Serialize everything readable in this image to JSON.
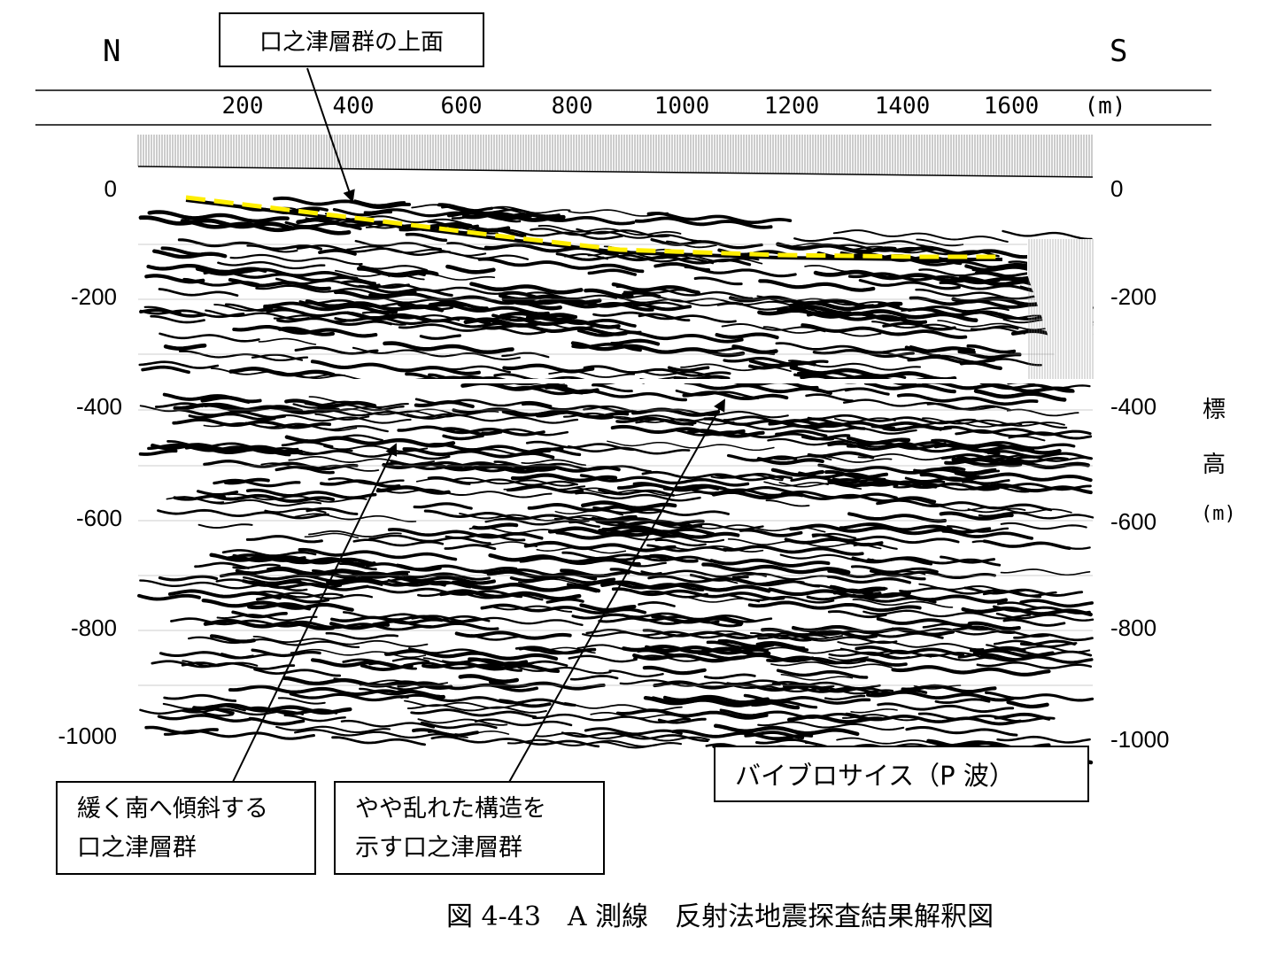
{
  "directions": {
    "north": "N",
    "south": "S"
  },
  "top_callout": "口之津層群の上面",
  "x_axis": {
    "ticks": [
      "200",
      "400",
      "600",
      "800",
      "1000",
      "1200",
      "1400",
      "1600"
    ],
    "unit": "(m)"
  },
  "y_axis_left": {
    "ticks": [
      "0",
      "-200",
      "-400",
      "-600",
      "-800",
      "-1000"
    ]
  },
  "y_axis_right": {
    "ticks": [
      "0",
      "-200",
      "-400",
      "-600",
      "-800",
      "-1000"
    ],
    "label_chars": [
      "標",
      "高"
    ],
    "unit": "(m)"
  },
  "method_label": "バイブロサイス（P 波）",
  "callouts": {
    "left_line1": "緩く南へ傾斜する",
    "left_line2": "口之津層群",
    "right_line1": "やや乱れた構造を",
    "right_line2": "示す口之津層群"
  },
  "caption": "図 4-43　A 測線　反射法地震探査結果解釈図",
  "colors": {
    "horizon": "#ffee00",
    "traces": "#000000",
    "background": "#ffffff"
  }
}
